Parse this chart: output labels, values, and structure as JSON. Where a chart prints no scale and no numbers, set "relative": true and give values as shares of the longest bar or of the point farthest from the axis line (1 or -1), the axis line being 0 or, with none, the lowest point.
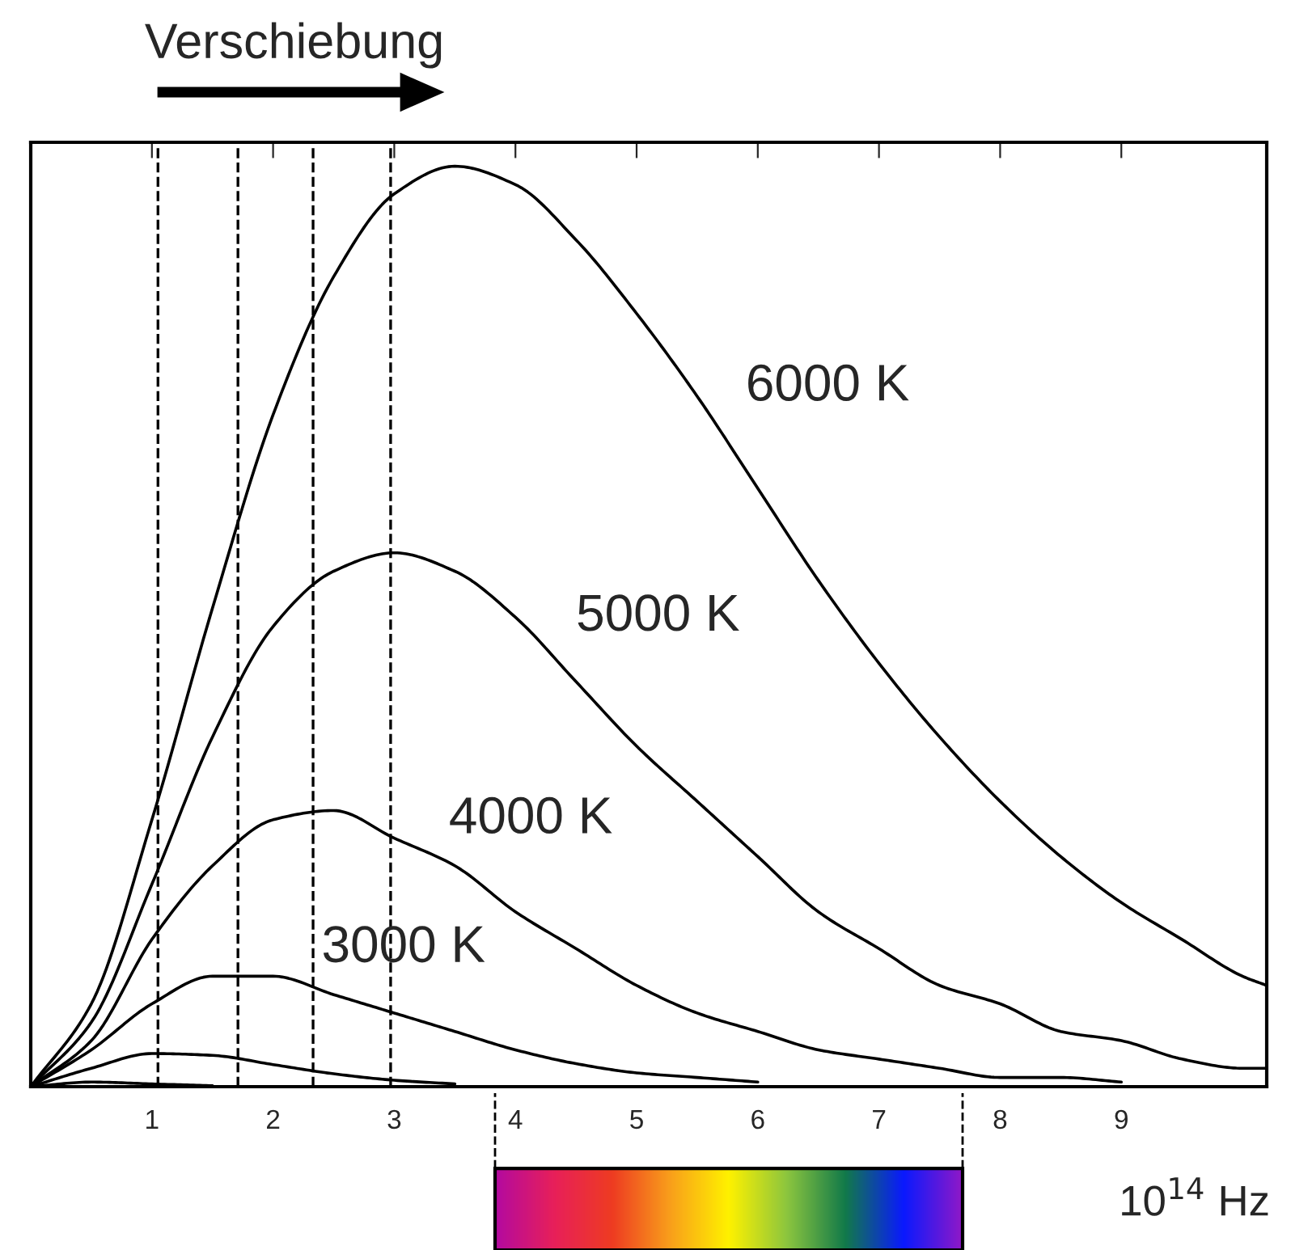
{
  "chart_data": {
    "type": "line",
    "relative": true,
    "xlabel": "10$^{14}$ Hz",
    "annotations": [
      "Verschiebung"
    ],
    "x": [
      0,
      0.5,
      1,
      1.5,
      2,
      2.5,
      3,
      3.5,
      4,
      4.5,
      5,
      5.5,
      6,
      6.5,
      7,
      7.5,
      8,
      8.5,
      9,
      9.5,
      10,
      10.2
    ],
    "xlim": [
      0,
      10.2
    ],
    "xticks": [
      1,
      2,
      3,
      4,
      5,
      6,
      7,
      8,
      9
    ],
    "series": [
      {
        "name": "6000 K",
        "color": "#000000",
        "values": [
          0,
          0.09,
          0.29,
          0.52,
          0.73,
          0.88,
          0.97,
          1.0,
          0.98,
          0.92,
          0.84,
          0.75,
          0.65,
          0.55,
          0.46,
          0.38,
          0.31,
          0.25,
          0.2,
          0.16,
          0.12,
          0.11
        ]
      },
      {
        "name": "5000 K",
        "color": "#000000",
        "values": [
          0,
          0.07,
          0.22,
          0.38,
          0.5,
          0.56,
          0.58,
          0.56,
          0.51,
          0.44,
          0.37,
          0.31,
          0.25,
          0.19,
          0.15,
          0.11,
          0.09,
          0.06,
          0.05,
          0.03,
          0.02,
          0.02
        ]
      },
      {
        "name": "4000 K",
        "color": "#000000",
        "x": [
          0,
          0.5,
          1,
          1.5,
          2,
          2.5,
          3,
          3.5,
          4,
          4.5,
          5,
          5.5,
          6,
          6.5,
          7,
          7.5,
          8,
          8.5,
          9
        ],
        "values": [
          0,
          0.05,
          0.16,
          0.24,
          0.29,
          0.3,
          0.27,
          0.24,
          0.19,
          0.15,
          0.11,
          0.08,
          0.06,
          0.04,
          0.03,
          0.02,
          0.01,
          0.01,
          0.005
        ]
      },
      {
        "name": "3000 K",
        "color": "#000000",
        "x": [
          0,
          0.5,
          1,
          1.5,
          2,
          2.5,
          3,
          3.5,
          4,
          4.5,
          5,
          5.5,
          6
        ],
        "values": [
          0,
          0.04,
          0.09,
          0.12,
          0.12,
          0.1,
          0.08,
          0.06,
          0.04,
          0.025,
          0.015,
          0.01,
          0.005
        ]
      },
      {
        "color": "#000000",
        "x": [
          0,
          0.5,
          1,
          1.5,
          2,
          2.5,
          3,
          3.5
        ],
        "values": [
          0,
          0.02,
          0.036,
          0.034,
          0.024,
          0.014,
          0.007,
          0.003
        ]
      },
      {
        "color": "#000000",
        "x": [
          0,
          0.5,
          1,
          1.5
        ],
        "values": [
          0,
          0.005,
          0.003,
          0.001
        ]
      }
    ],
    "ref_lines": [
      {
        "axis": "x",
        "value": 1.05,
        "line_style": "dashed",
        "color": "#000000"
      },
      {
        "axis": "x",
        "value": 1.71,
        "line_style": "dashed",
        "color": "#000000"
      },
      {
        "axis": "x",
        "value": 2.33,
        "line_style": "dashed",
        "color": "#000000"
      },
      {
        "axis": "x",
        "value": 2.97,
        "line_style": "dashed",
        "color": "#000000"
      }
    ],
    "line_style": "solid",
    "marker": "none",
    "grid": false
  }
}
